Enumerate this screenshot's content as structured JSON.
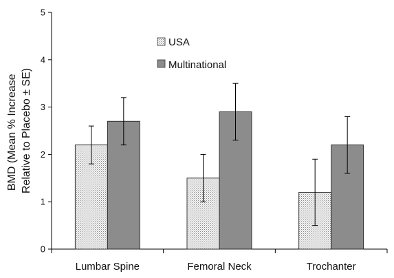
{
  "chart_data": {
    "type": "bar",
    "title": "",
    "xlabel": "",
    "ylabel_lines": [
      "BMD (Mean % Increase",
      "Relative to Placebo ± SE)"
    ],
    "categories": [
      "Lumbar Spine",
      "Femoral Neck",
      "Trochanter"
    ],
    "ylim": [
      0,
      5
    ],
    "yticks": [
      0,
      1,
      2,
      3,
      4,
      5
    ],
    "grid": false,
    "legend_position": "top-center",
    "series": [
      {
        "name": "USA",
        "values": [
          2.2,
          1.5,
          1.2
        ],
        "error_low": [
          1.8,
          1.0,
          0.5
        ],
        "error_high": [
          2.6,
          2.0,
          1.9
        ],
        "fill": "#e6e6e6",
        "pattern": "dots"
      },
      {
        "name": "Multinational",
        "values": [
          2.7,
          2.9,
          2.2
        ],
        "error_low": [
          2.2,
          2.3,
          1.6
        ],
        "error_high": [
          3.2,
          3.5,
          2.8
        ],
        "fill": "#8c8c8c",
        "pattern": "solid"
      }
    ]
  }
}
